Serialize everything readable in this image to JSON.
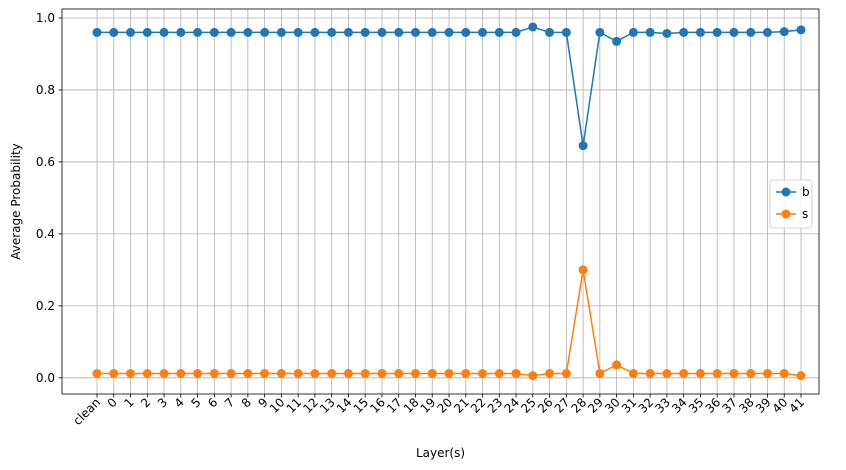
{
  "chart_data": {
    "type": "line",
    "title": "",
    "xlabel": "Layer(s)",
    "ylabel": "Average Probability",
    "categories": [
      "clean",
      "0",
      "1",
      "2",
      "3",
      "4",
      "5",
      "6",
      "7",
      "8",
      "9",
      "10",
      "11",
      "12",
      "13",
      "14",
      "15",
      "16",
      "17",
      "18",
      "19",
      "20",
      "21",
      "22",
      "23",
      "24",
      "25",
      "26",
      "27",
      "28",
      "29",
      "30",
      "31",
      "32",
      "33",
      "34",
      "35",
      "36",
      "37",
      "38",
      "39",
      "40",
      "41"
    ],
    "yticks": [
      "0.0",
      "0.2",
      "0.4",
      "0.6",
      "0.8",
      "1.0"
    ],
    "ytick_values": [
      0.0,
      0.2,
      0.4,
      0.6,
      0.8,
      1.0
    ],
    "ylim": [
      -0.045,
      1.025
    ],
    "grid": true,
    "legend_position": "center-right",
    "series": [
      {
        "name": "b",
        "color": "#1f77b4",
        "values": [
          0.96,
          0.96,
          0.96,
          0.96,
          0.96,
          0.96,
          0.96,
          0.96,
          0.96,
          0.96,
          0.96,
          0.96,
          0.96,
          0.96,
          0.96,
          0.96,
          0.96,
          0.96,
          0.96,
          0.96,
          0.96,
          0.96,
          0.96,
          0.96,
          0.96,
          0.96,
          0.975,
          0.96,
          0.96,
          0.645,
          0.96,
          0.935,
          0.96,
          0.96,
          0.957,
          0.96,
          0.96,
          0.96,
          0.96,
          0.96,
          0.96,
          0.962,
          0.967
        ]
      },
      {
        "name": "s",
        "color": "#ff7f0e",
        "values": [
          0.012,
          0.012,
          0.012,
          0.012,
          0.012,
          0.012,
          0.012,
          0.012,
          0.012,
          0.012,
          0.012,
          0.012,
          0.012,
          0.012,
          0.012,
          0.012,
          0.012,
          0.012,
          0.012,
          0.012,
          0.012,
          0.012,
          0.012,
          0.012,
          0.012,
          0.012,
          0.006,
          0.012,
          0.012,
          0.3,
          0.012,
          0.036,
          0.012,
          0.012,
          0.012,
          0.012,
          0.012,
          0.012,
          0.012,
          0.012,
          0.012,
          0.012,
          0.006
        ]
      }
    ]
  }
}
